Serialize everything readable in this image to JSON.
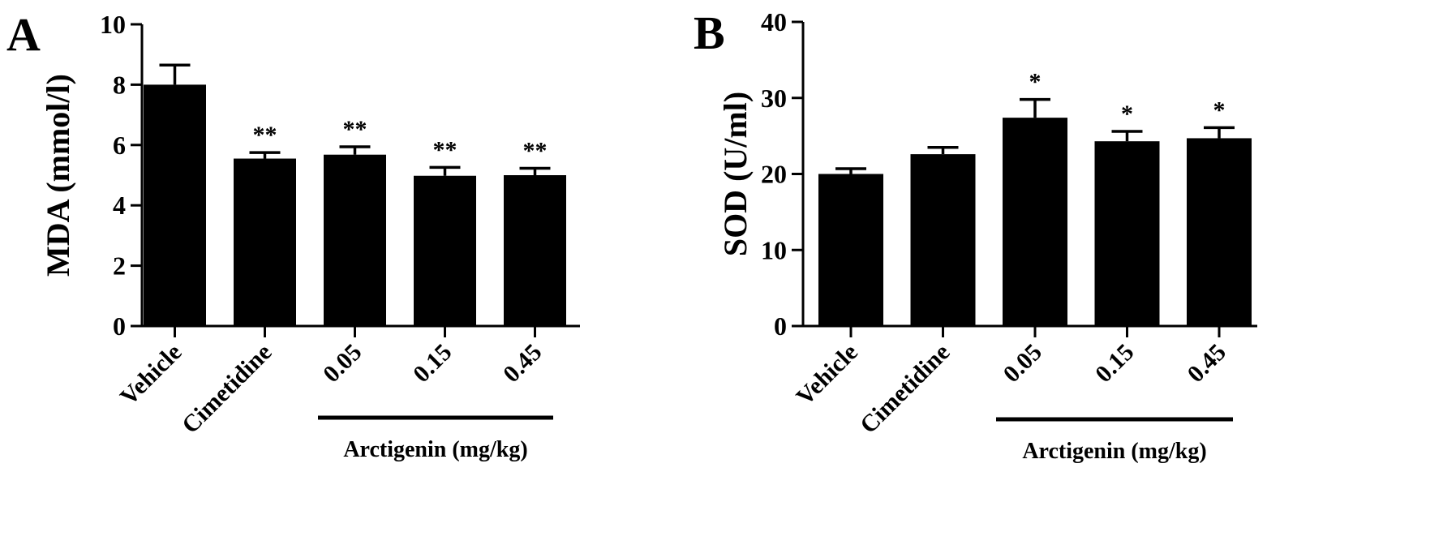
{
  "chart_data": [
    {
      "type": "bar",
      "panel_label": "A",
      "categories": [
        "Vehicle",
        "Cimetidine",
        "0.05",
        "0.15",
        "0.45"
      ],
      "values": [
        8.0,
        5.55,
        5.68,
        4.98,
        5.0
      ],
      "errors": [
        0.65,
        0.2,
        0.26,
        0.28,
        0.23
      ],
      "significance": [
        "",
        "**",
        "**",
        "**",
        "**"
      ],
      "title": "",
      "xlabel": "",
      "ylabel": "MDA (mmol/l)",
      "ylim": [
        0,
        10
      ],
      "yticks": [
        0,
        2,
        4,
        6,
        8,
        10
      ],
      "group_bracket": {
        "label": "Arctigenin (mg/kg)",
        "from_category": 2,
        "to_category": 4
      },
      "grid": false,
      "legend": "none",
      "bar_color": "#000000"
    },
    {
      "type": "bar",
      "panel_label": "B",
      "categories": [
        "Vehicle",
        "Cimetidine",
        "0.05",
        "0.15",
        "0.45"
      ],
      "values": [
        20.0,
        22.6,
        27.4,
        24.3,
        24.7
      ],
      "errors": [
        0.7,
        0.9,
        2.4,
        1.3,
        1.4
      ],
      "significance": [
        "",
        "",
        "*",
        "*",
        "*"
      ],
      "title": "",
      "xlabel": "",
      "ylabel": "SOD (U/ml)",
      "ylim": [
        0,
        40
      ],
      "yticks": [
        0,
        10,
        20,
        30,
        40
      ],
      "group_bracket": {
        "label": "Arctigenin (mg/kg)",
        "from_category": 2,
        "to_category": 4
      },
      "grid": false,
      "legend": "none",
      "bar_color": "#000000"
    }
  ]
}
